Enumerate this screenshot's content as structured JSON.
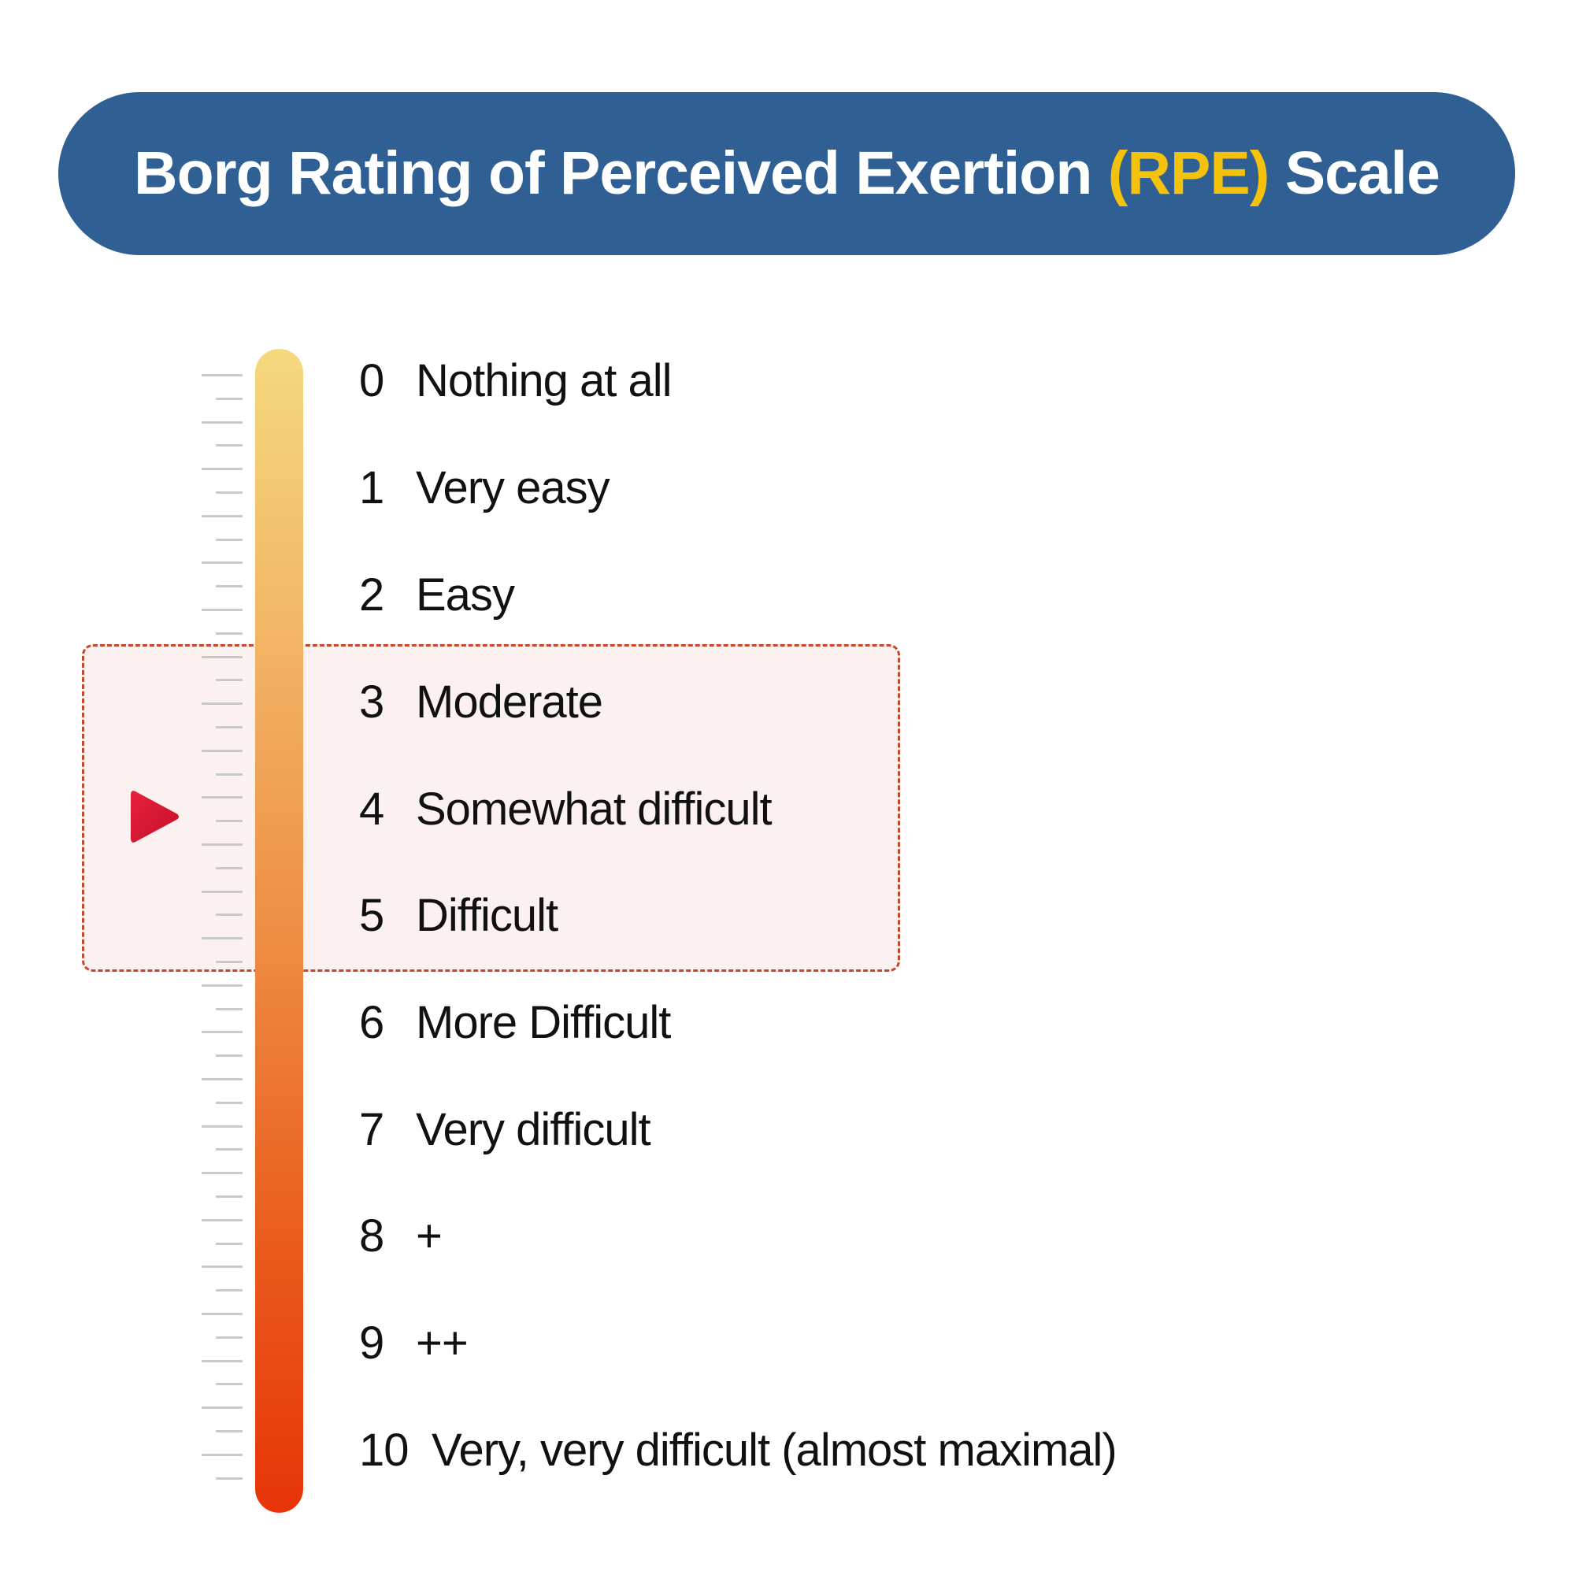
{
  "header": {
    "title_main": "Borg Rating of Perceived Exertion",
    "title_accent": "(RPE)",
    "title_end": "Scale",
    "banner_color": "#2f5f93",
    "accent_color": "#f4c20d"
  },
  "scale": {
    "gradient_colors": [
      "#f5d97e",
      "#f2b565",
      "#ee8e45",
      "#ea5f1f",
      "#e73408"
    ],
    "highlight_border_color": "#c8472a",
    "highlight_range": [
      3,
      5
    ],
    "pointer_level": 4,
    "pointer_color": "#d0142c",
    "levels": [
      {
        "value": "0",
        "label": "Nothing at all"
      },
      {
        "value": "1",
        "label": "Very easy"
      },
      {
        "value": "2",
        "label": "Easy"
      },
      {
        "value": "3",
        "label": "Moderate"
      },
      {
        "value": "4",
        "label": "Somewhat difficult"
      },
      {
        "value": "5",
        "label": "Difficult"
      },
      {
        "value": "6",
        "label": "More Difficult"
      },
      {
        "value": "7",
        "label": "Very difficult"
      },
      {
        "value": "8",
        "label": "+"
      },
      {
        "value": "9",
        "label": "++"
      },
      {
        "value": "10",
        "label": "Very, very difficult (almost maximal)"
      }
    ]
  }
}
